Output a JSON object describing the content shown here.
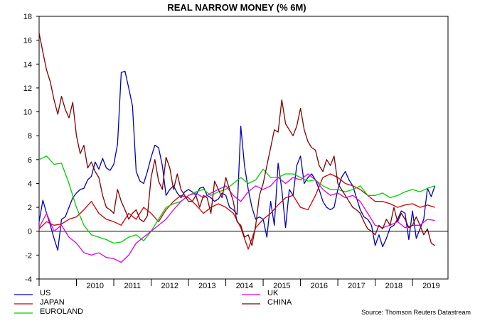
{
  "chart_data": {
    "type": "line",
    "title": "REAL NARROW MONEY (% 6M)",
    "xlabel": "",
    "ylabel": "",
    "ylim": [
      -4,
      18
    ],
    "yticks": [
      -4,
      -2,
      0,
      2,
      4,
      6,
      8,
      10,
      12,
      14,
      16,
      18
    ],
    "xlim": [
      2009.0,
      2019.95
    ],
    "x_tick_labels": [
      "2010",
      "2011",
      "2012",
      "2013",
      "2014",
      "2015",
      "2016",
      "2017",
      "2018",
      "2019"
    ],
    "zero_line": true,
    "grid": false,
    "source": "Source: Thomson Reuters Datastream",
    "legend_position": "bottom",
    "series": [
      {
        "name": "US",
        "color": "#0000c0",
        "x": [
          2009.0,
          2009.1,
          2009.2,
          2009.3,
          2009.4,
          2009.5,
          2009.6,
          2009.7,
          2009.8,
          2009.9,
          2010.0,
          2010.1,
          2010.2,
          2010.3,
          2010.4,
          2010.5,
          2010.6,
          2010.7,
          2010.8,
          2010.9,
          2011.0,
          2011.1,
          2011.2,
          2011.3,
          2011.4,
          2011.5,
          2011.6,
          2011.7,
          2011.8,
          2011.9,
          2012.0,
          2012.1,
          2012.2,
          2012.3,
          2012.4,
          2012.5,
          2012.6,
          2012.7,
          2012.8,
          2012.9,
          2013.0,
          2013.1,
          2013.2,
          2013.3,
          2013.4,
          2013.5,
          2013.6,
          2013.7,
          2013.8,
          2013.9,
          2014.0,
          2014.1,
          2014.2,
          2014.3,
          2014.4,
          2014.5,
          2014.6,
          2014.7,
          2014.8,
          2014.9,
          2015.0,
          2015.1,
          2015.2,
          2015.3,
          2015.4,
          2015.5,
          2015.6,
          2015.7,
          2015.8,
          2015.9,
          2016.0,
          2016.1,
          2016.2,
          2016.3,
          2016.4,
          2016.5,
          2016.6,
          2016.7,
          2016.8,
          2016.9,
          2017.0,
          2017.1,
          2017.2,
          2017.3,
          2017.4,
          2017.5,
          2017.6,
          2017.7,
          2017.8,
          2017.9,
          2018.0,
          2018.1,
          2018.2,
          2018.3,
          2018.4,
          2018.5,
          2018.6,
          2018.7,
          2018.8,
          2018.9,
          2019.0,
          2019.1,
          2019.2,
          2019.3,
          2019.4,
          2019.5,
          2019.6
        ],
        "values": [
          0.8,
          2.6,
          1.5,
          0.5,
          -0.6,
          -1.6,
          1.0,
          1.2,
          2.0,
          2.8,
          3.2,
          3.5,
          3.6,
          4.3,
          4.6,
          5.8,
          5.2,
          6.1,
          5.3,
          5.1,
          5.6,
          7.3,
          13.3,
          13.4,
          12.0,
          10.5,
          5.0,
          4.2,
          4.0,
          5.0,
          6.2,
          7.2,
          7.0,
          5.5,
          3.0,
          3.5,
          3.8,
          3.2,
          2.8,
          3.3,
          3.5,
          3.3,
          3.0,
          3.6,
          3.7,
          3.0,
          2.8,
          2.5,
          2.7,
          3.2,
          3.0,
          2.0,
          1.8,
          1.4,
          8.8,
          5.5,
          3.5,
          2.0,
          1.0,
          1.2,
          1.0,
          -0.5,
          2.5,
          0.5,
          5.7,
          3.5,
          0.3,
          3.5,
          3.0,
          5.5,
          6.3,
          4.0,
          4.5,
          4.8,
          4.3,
          3.5,
          2.5,
          2.0,
          1.8,
          2.0,
          3.5,
          4.5,
          5.0,
          4.3,
          3.8,
          2.8,
          1.8,
          1.2,
          1.0,
          0.5,
          -1.2,
          -0.3,
          -1.3,
          -0.6,
          0.3,
          0.5,
          1.0,
          1.7,
          1.5,
          -0.7,
          1.7,
          -0.6,
          0.2,
          1.0,
          3.6,
          2.9,
          3.8
        ]
      },
      {
        "name": "JAPAN",
        "color": "#d00000",
        "x": [
          2009.0,
          2009.2,
          2009.4,
          2009.6,
          2009.8,
          2010.0,
          2010.2,
          2010.4,
          2010.6,
          2010.8,
          2011.0,
          2011.2,
          2011.4,
          2011.6,
          2011.8,
          2012.0,
          2012.2,
          2012.4,
          2012.6,
          2012.8,
          2013.0,
          2013.2,
          2013.4,
          2013.6,
          2013.8,
          2014.0,
          2014.2,
          2014.4,
          2014.6,
          2014.8,
          2015.0,
          2015.2,
          2015.4,
          2015.6,
          2015.8,
          2016.0,
          2016.2,
          2016.4,
          2016.6,
          2016.8,
          2017.0,
          2017.2,
          2017.4,
          2017.6,
          2017.8,
          2018.0,
          2018.2,
          2018.4,
          2018.6,
          2018.8,
          2019.0,
          2019.2,
          2019.4,
          2019.6
        ],
        "values": [
          0.2,
          0.8,
          0.5,
          0.6,
          1.0,
          1.2,
          1.8,
          2.5,
          1.5,
          1.0,
          0.8,
          0.5,
          1.5,
          1.0,
          2.0,
          1.5,
          0.8,
          1.8,
          2.5,
          3.0,
          2.8,
          2.2,
          1.5,
          2.0,
          2.3,
          2.0,
          1.5,
          0.3,
          -1.5,
          0.3,
          1.0,
          1.5,
          2.2,
          2.8,
          3.0,
          2.0,
          1.8,
          3.0,
          4.5,
          4.8,
          4.5,
          4.0,
          3.8,
          3.5,
          3.0,
          2.5,
          2.5,
          2.3,
          2.0,
          2.2,
          2.3,
          2.0,
          2.2,
          2.0
        ]
      },
      {
        "name": "EUROLAND",
        "color": "#00d000",
        "x": [
          2009.0,
          2009.2,
          2009.4,
          2009.6,
          2009.8,
          2010.0,
          2010.2,
          2010.4,
          2010.6,
          2010.8,
          2011.0,
          2011.2,
          2011.4,
          2011.6,
          2011.8,
          2012.0,
          2012.2,
          2012.4,
          2012.6,
          2012.8,
          2013.0,
          2013.2,
          2013.4,
          2013.6,
          2013.8,
          2014.0,
          2014.2,
          2014.4,
          2014.6,
          2014.8,
          2015.0,
          2015.2,
          2015.4,
          2015.6,
          2015.8,
          2016.0,
          2016.2,
          2016.4,
          2016.6,
          2016.8,
          2017.0,
          2017.2,
          2017.4,
          2017.6,
          2017.8,
          2018.0,
          2018.2,
          2018.4,
          2018.6,
          2018.8,
          2019.0,
          2019.2,
          2019.4,
          2019.6
        ],
        "values": [
          6.0,
          6.3,
          5.6,
          5.7,
          4.0,
          2.0,
          0.5,
          -0.3,
          -0.5,
          -0.7,
          -1.0,
          -0.9,
          -0.5,
          -0.3,
          -0.8,
          0.0,
          1.0,
          2.0,
          2.3,
          2.5,
          3.0,
          3.3,
          3.5,
          3.0,
          3.3,
          3.5,
          4.0,
          4.5,
          4.0,
          4.3,
          5.2,
          4.5,
          4.5,
          4.8,
          4.8,
          4.5,
          4.2,
          4.3,
          3.8,
          3.5,
          3.5,
          3.3,
          3.5,
          3.8,
          3.0,
          3.0,
          3.2,
          2.8,
          3.0,
          3.3,
          3.5,
          3.3,
          3.6,
          3.8
        ]
      },
      {
        "name": "UK",
        "color": "#e000e0",
        "x": [
          2009.0,
          2009.2,
          2009.4,
          2009.6,
          2009.8,
          2010.0,
          2010.2,
          2010.4,
          2010.6,
          2010.8,
          2011.0,
          2011.2,
          2011.4,
          2011.6,
          2011.8,
          2012.0,
          2012.2,
          2012.4,
          2012.6,
          2012.8,
          2013.0,
          2013.2,
          2013.4,
          2013.6,
          2013.8,
          2014.0,
          2014.2,
          2014.4,
          2014.6,
          2014.8,
          2015.0,
          2015.2,
          2015.4,
          2015.6,
          2015.8,
          2016.0,
          2016.2,
          2016.4,
          2016.6,
          2016.8,
          2017.0,
          2017.2,
          2017.4,
          2017.6,
          2017.8,
          2018.0,
          2018.2,
          2018.4,
          2018.6,
          2018.8,
          2019.0,
          2019.2,
          2019.4,
          2019.6
        ],
        "values": [
          0.3,
          1.5,
          0.0,
          0.5,
          -0.5,
          -1.0,
          -1.8,
          -2.0,
          -1.8,
          -2.2,
          -2.3,
          -2.6,
          -2.0,
          -1.0,
          -0.5,
          0.0,
          0.5,
          1.0,
          1.8,
          2.5,
          3.0,
          3.2,
          2.8,
          3.2,
          3.5,
          3.8,
          3.0,
          2.5,
          3.3,
          3.8,
          3.5,
          3.8,
          4.5,
          4.0,
          4.5,
          4.3,
          4.8,
          4.3,
          3.5,
          3.0,
          3.2,
          2.8,
          3.0,
          2.5,
          1.5,
          0.5,
          0.3,
          0.5,
          0.8,
          0.3,
          0.5,
          0.5,
          1.0,
          0.9
        ]
      },
      {
        "name": "CHINA",
        "color": "#800000",
        "x": [
          2009.0,
          2009.1,
          2009.2,
          2009.3,
          2009.4,
          2009.5,
          2009.6,
          2009.7,
          2009.8,
          2009.9,
          2010.0,
          2010.1,
          2010.2,
          2010.3,
          2010.4,
          2010.5,
          2010.6,
          2010.7,
          2010.8,
          2010.9,
          2011.0,
          2011.1,
          2011.2,
          2011.3,
          2011.4,
          2011.5,
          2011.6,
          2011.7,
          2011.8,
          2011.9,
          2012.0,
          2012.1,
          2012.2,
          2012.3,
          2012.4,
          2012.5,
          2012.6,
          2012.7,
          2012.8,
          2012.9,
          2013.0,
          2013.1,
          2013.2,
          2013.3,
          2013.4,
          2013.5,
          2013.6,
          2013.7,
          2013.8,
          2013.9,
          2014.0,
          2014.1,
          2014.2,
          2014.3,
          2014.4,
          2014.5,
          2014.6,
          2014.7,
          2014.8,
          2014.9,
          2015.0,
          2015.1,
          2015.2,
          2015.3,
          2015.4,
          2015.5,
          2015.6,
          2015.7,
          2015.8,
          2015.9,
          2016.0,
          2016.1,
          2016.2,
          2016.3,
          2016.4,
          2016.5,
          2016.6,
          2016.7,
          2016.8,
          2016.9,
          2017.0,
          2017.1,
          2017.2,
          2017.3,
          2017.4,
          2017.5,
          2017.6,
          2017.7,
          2017.8,
          2017.9,
          2018.0,
          2018.1,
          2018.2,
          2018.3,
          2018.4,
          2018.5,
          2018.6,
          2018.7,
          2018.8,
          2018.9,
          2019.0,
          2019.1,
          2019.2,
          2019.3,
          2019.4,
          2019.5,
          2019.6
        ],
        "values": [
          16.6,
          15.0,
          13.5,
          12.5,
          11.0,
          9.8,
          11.3,
          10.2,
          9.5,
          10.8,
          8.0,
          6.5,
          7.2,
          5.3,
          5.8,
          5.0,
          4.5,
          3.0,
          2.0,
          1.8,
          1.5,
          3.5,
          2.5,
          1.8,
          1.0,
          1.5,
          1.8,
          1.0,
          0.8,
          1.3,
          4.5,
          6.0,
          4.2,
          3.5,
          6.2,
          5.3,
          3.5,
          4.8,
          3.5,
          3.0,
          2.5,
          2.5,
          3.0,
          2.0,
          3.0,
          2.8,
          1.5,
          4.2,
          3.5,
          2.8,
          4.5,
          3.5,
          2.5,
          0.8,
          0.5,
          -0.5,
          -0.3,
          -1.2,
          0.5,
          3.0,
          4.0,
          5.5,
          7.0,
          8.5,
          8.3,
          11.0,
          9.0,
          8.5,
          8.0,
          8.8,
          10.3,
          8.5,
          7.5,
          7.0,
          6.8,
          5.5,
          5.0,
          6.0,
          5.5,
          6.3,
          4.0,
          3.5,
          3.0,
          2.5,
          2.0,
          1.8,
          1.5,
          0.8,
          0.2,
          0.0,
          -0.3,
          0.5,
          0.2,
          1.0,
          0.5,
          2.0,
          0.8,
          1.5,
          1.0,
          0.3,
          0.5,
          1.2,
          0.5,
          -0.3,
          0.2,
          -1.0,
          -1.2
        ]
      }
    ]
  }
}
